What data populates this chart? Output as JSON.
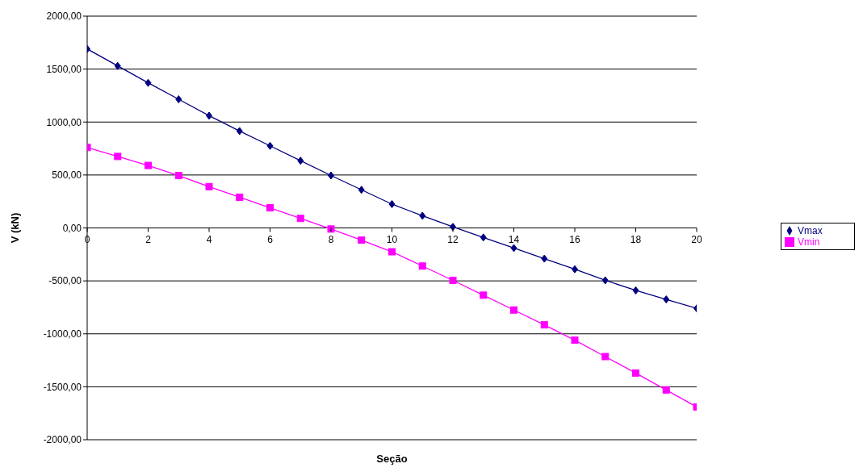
{
  "chart_data": {
    "type": "line",
    "xlabel": "Seção",
    "ylabel": "V (kN)",
    "x": [
      0,
      1,
      2,
      3,
      4,
      5,
      6,
      7,
      8,
      9,
      10,
      11,
      12,
      13,
      14,
      15,
      16,
      17,
      18,
      19,
      20
    ],
    "series": [
      {
        "name": "Vmax",
        "color": "#000080",
        "marker": "diamond",
        "values": [
          1690,
          1530,
          1370,
          1215,
          1060,
          915,
          775,
          635,
          495,
          360,
          225,
          115,
          10,
          -90,
          -190,
          -290,
          -390,
          -495,
          -590,
          -675,
          -760
        ]
      },
      {
        "name": "Vmin",
        "color": "#ff00ff",
        "marker": "square",
        "values": [
          760,
          675,
          590,
          495,
          390,
          290,
          190,
          90,
          -10,
          -115,
          -225,
          -360,
          -495,
          -635,
          -775,
          -915,
          -1060,
          -1215,
          -1370,
          -1530,
          -1690
        ]
      }
    ],
    "xlim": [
      0,
      20
    ],
    "xticks": [
      0,
      2,
      4,
      6,
      8,
      10,
      12,
      14,
      16,
      18,
      20
    ],
    "ylim": [
      -2000,
      2000
    ],
    "yticks": [
      {
        "value": -2000,
        "label": "-2000,00"
      },
      {
        "value": -1500,
        "label": "-1500,00"
      },
      {
        "value": -1000,
        "label": "-1000,00"
      },
      {
        "value": -500,
        "label": "-500,00"
      },
      {
        "value": 0,
        "label": "0,00"
      },
      {
        "value": 500,
        "label": "500,00"
      },
      {
        "value": 1000,
        "label": "1000,00"
      },
      {
        "value": 1500,
        "label": "1500,00"
      },
      {
        "value": 2000,
        "label": "2000,00"
      }
    ],
    "grid": "y",
    "legend": "right",
    "line_style": "solid"
  }
}
